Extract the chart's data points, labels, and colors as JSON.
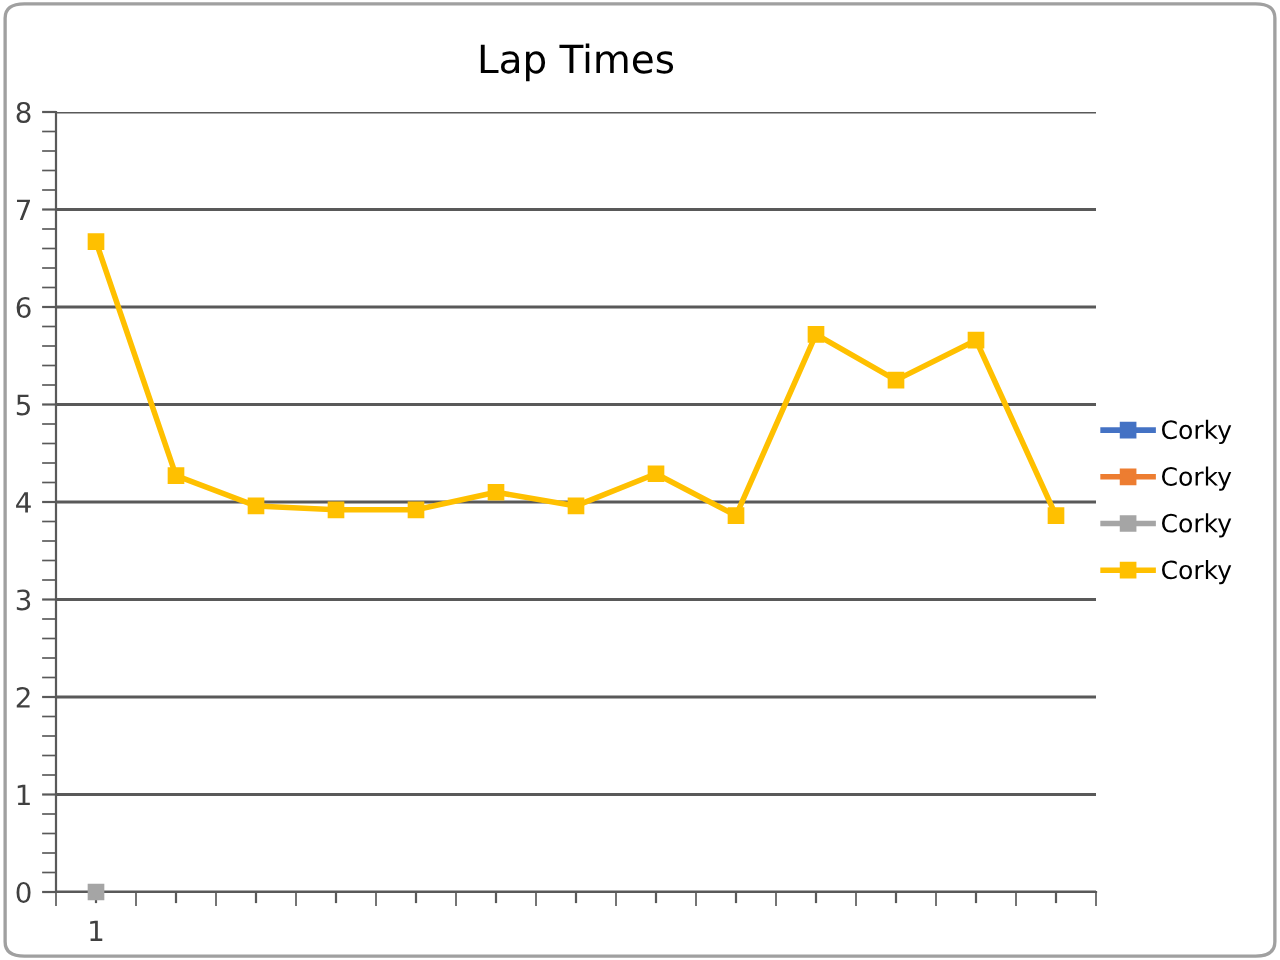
{
  "chart_data": {
    "type": "line",
    "title": "Lap Times",
    "categories": [
      "1",
      null,
      null,
      null,
      null,
      null,
      null,
      null,
      null,
      null,
      null,
      null,
      null
    ],
    "series": [
      {
        "name": "Corky",
        "color": "#4472c4",
        "values": [
          null,
          null,
          null,
          null,
          null,
          null,
          null,
          null,
          null,
          null,
          null,
          null,
          null
        ]
      },
      {
        "name": "Corky",
        "color": "#ed7d31",
        "values": [
          null,
          null,
          null,
          null,
          null,
          null,
          null,
          null,
          null,
          null,
          null,
          null,
          null
        ]
      },
      {
        "name": "Corky",
        "color": "#a5a5a5",
        "values": [
          0,
          null,
          null,
          null,
          null,
          null,
          null,
          null,
          null,
          null,
          null,
          null,
          null
        ]
      },
      {
        "name": "Corky",
        "color": "#ffc000",
        "values": [
          6.67,
          4.27,
          3.96,
          3.92,
          3.92,
          4.1,
          3.96,
          4.29,
          3.86,
          5.72,
          5.25,
          5.66,
          3.86
        ]
      }
    ],
    "ylim": [
      0,
      8
    ],
    "yticks": [
      0,
      1,
      2,
      3,
      4,
      5,
      6,
      7,
      8
    ],
    "grid": "y",
    "legend": "right",
    "marker": "square",
    "line_style": "solid"
  }
}
